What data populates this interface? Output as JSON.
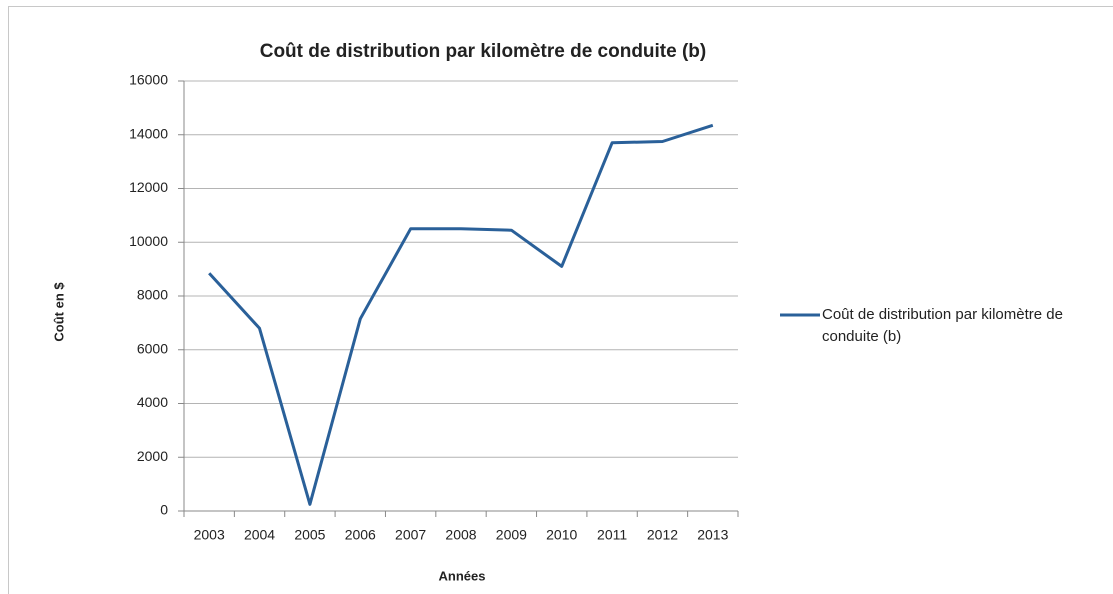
{
  "chart_data": {
    "type": "line",
    "title": "Coût de distribution par kilomètre de conduite (b)",
    "x_label": "Années",
    "y_label": "Coût en $",
    "categories": [
      "2003",
      "2004",
      "2005",
      "2006",
      "2007",
      "2008",
      "2009",
      "2010",
      "2011",
      "2012",
      "2013"
    ],
    "series": [
      {
        "name": "Coût de distribution par kilomètre de conduite (b)",
        "color": "#2a6099",
        "values": [
          8850,
          6800,
          250,
          7150,
          10500,
          10500,
          10450,
          9100,
          13700,
          13750,
          14350
        ]
      }
    ],
    "ylim": [
      0,
      16000
    ],
    "yticks": [
      0,
      2000,
      4000,
      6000,
      8000,
      10000,
      12000,
      14000,
      16000
    ],
    "grid": true,
    "legend": "right"
  }
}
